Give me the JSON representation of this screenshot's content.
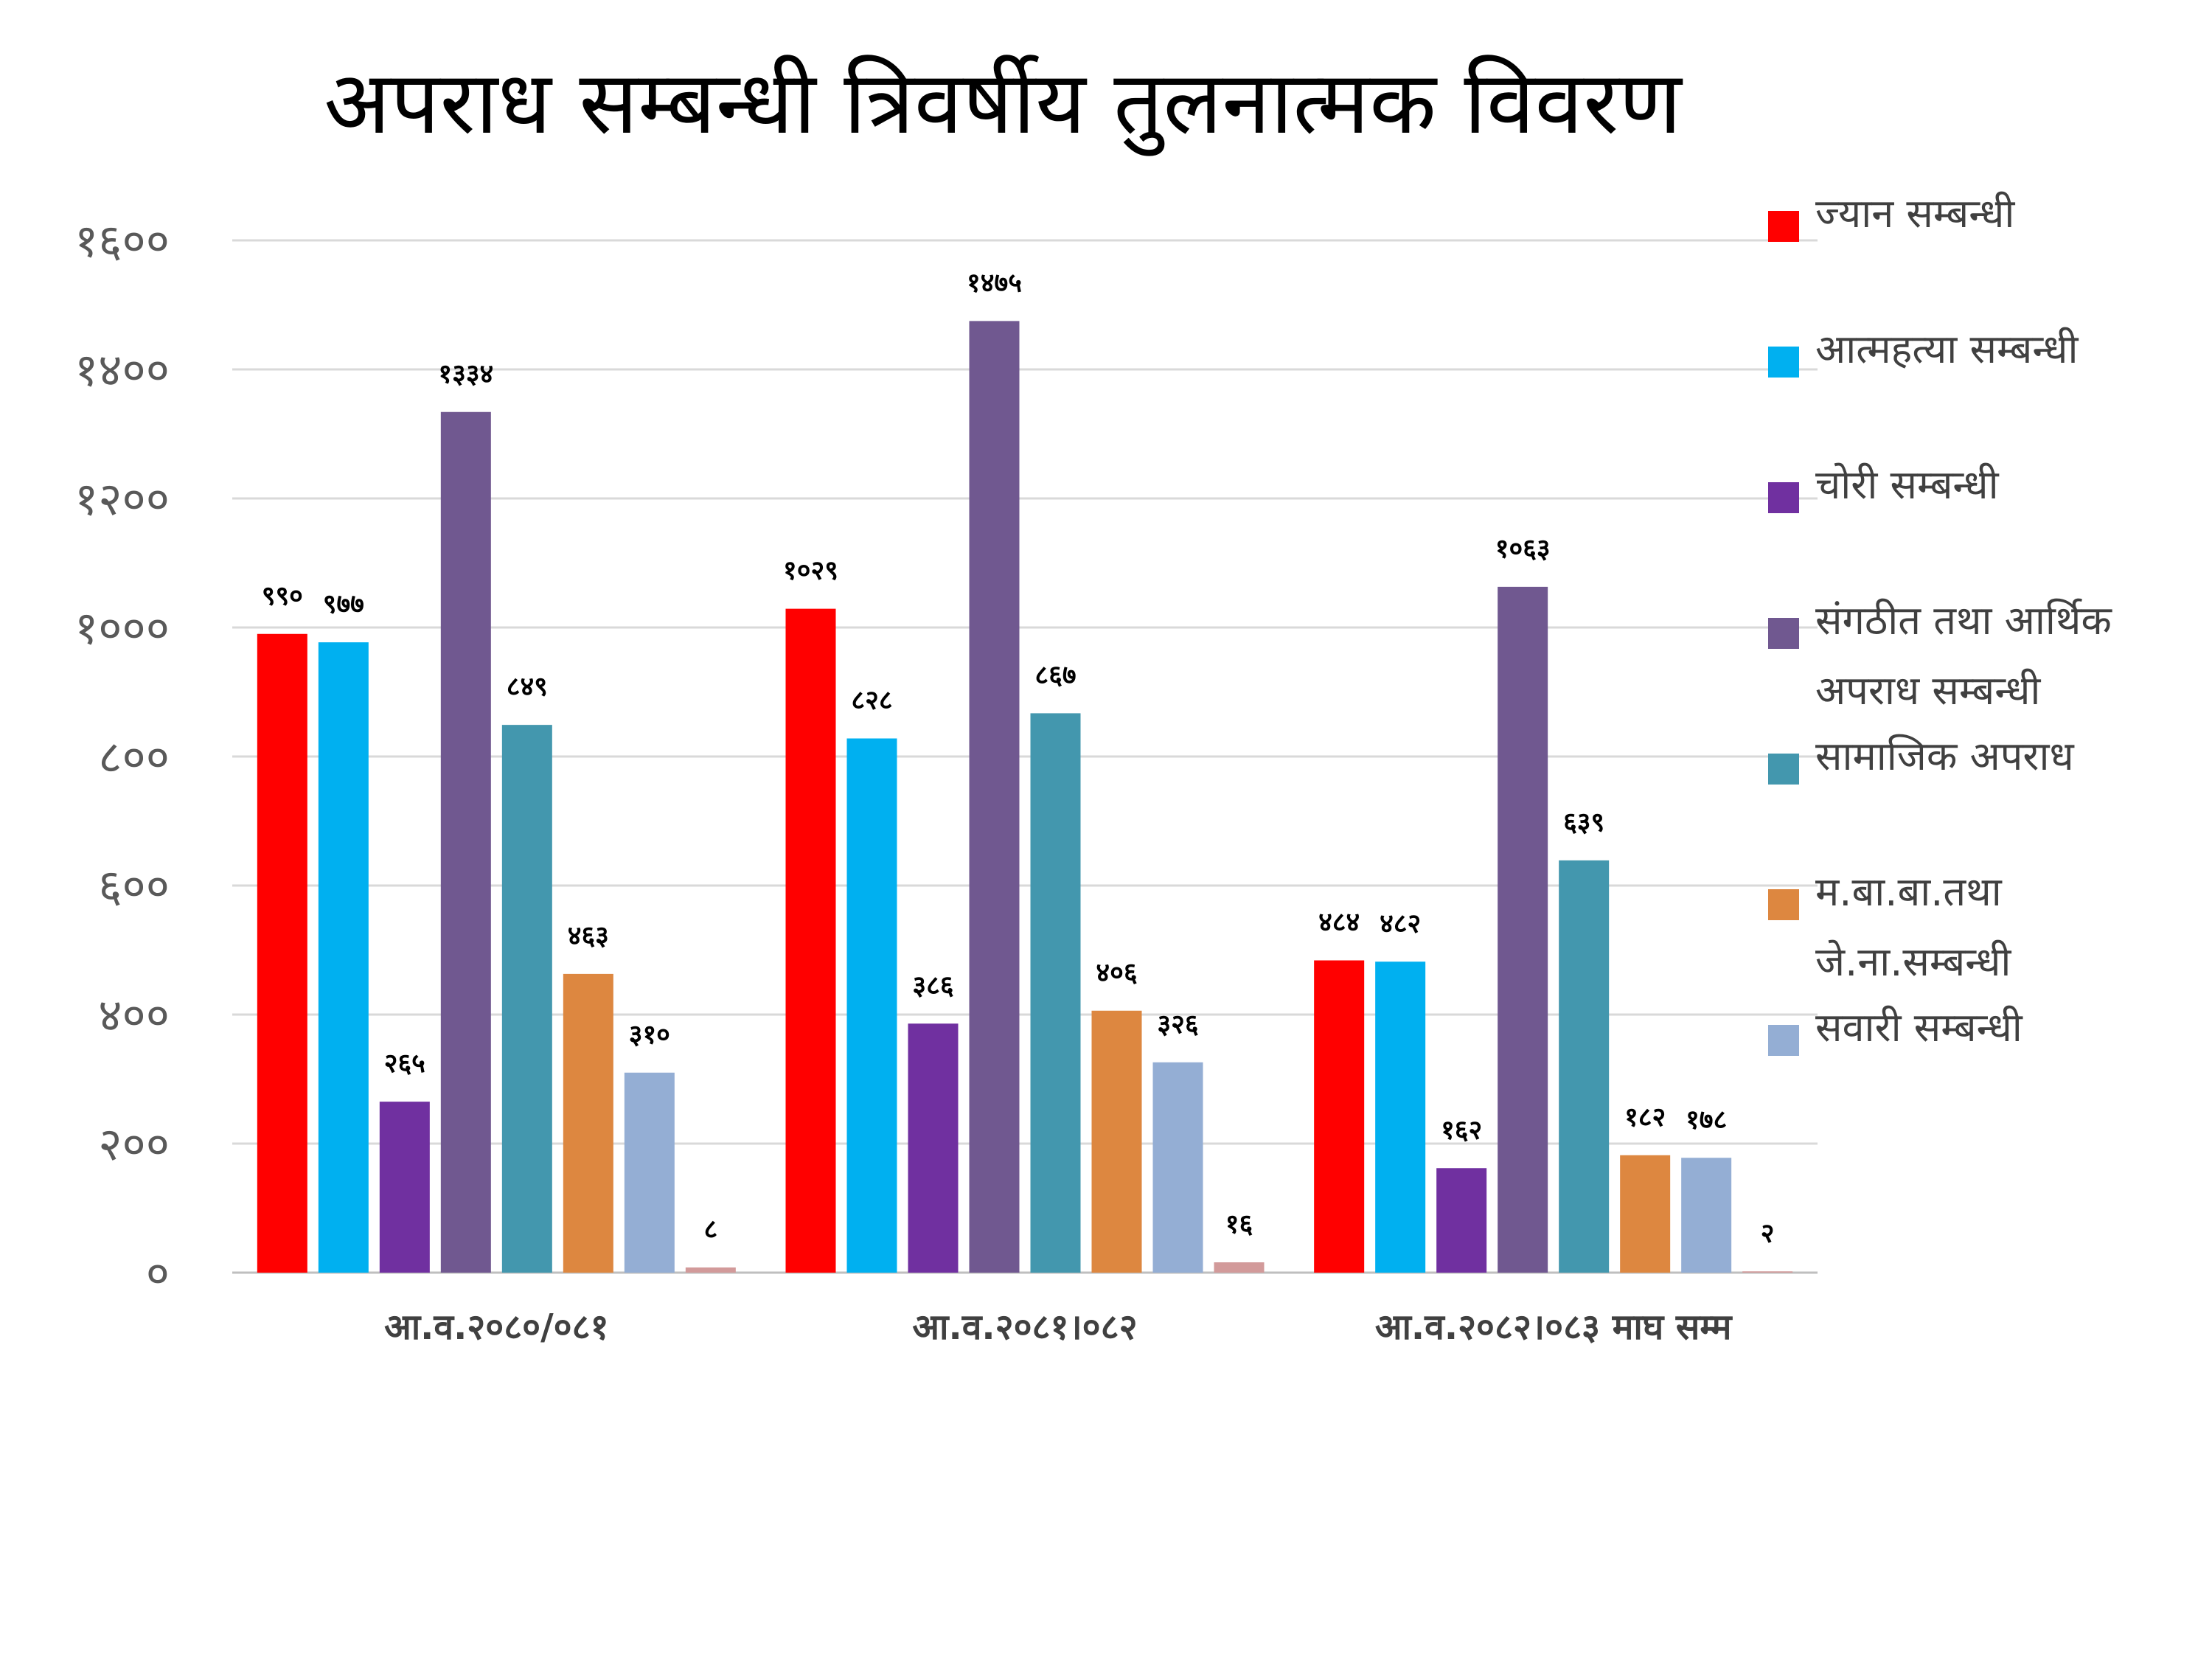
{
  "chart_data": {
    "type": "bar",
    "title": "अपराध सम्बन्धी त्रिवर्षीय तुलनात्मक विवरण",
    "categories": [
      "आ.व.२०८०/०८१",
      "आ.व.२०८१।०८२",
      "आ.व.२०८२।०८३ माघ सम्म"
    ],
    "ylim": [
      0,
      1600
    ],
    "yticks": [
      0,
      200,
      400,
      600,
      800,
      1000,
      1200,
      1400,
      1600
    ],
    "ytick_labels": [
      "०",
      "२००",
      "४००",
      "६००",
      "८००",
      "१०००",
      "१२००",
      "१४००",
      "१६००"
    ],
    "grid": true,
    "legend_position": "right",
    "series": [
      {
        "name": "ज्यान सम्बन्धी",
        "color": "#ff0000",
        "values": [
          990,
          1029,
          484
        ],
        "labels": [
          "९९०",
          "१०२९",
          "४८४"
        ]
      },
      {
        "name": "आत्महत्या सम्बन्धी",
        "color": "#00b0f0",
        "values": [
          977,
          828,
          482
        ],
        "labels": [
          "९७७",
          "८२८",
          "४८२"
        ]
      },
      {
        "name": "चोरी सम्बन्धी",
        "color": "#7030a0",
        "values": [
          265,
          386,
          162
        ],
        "labels": [
          "२६५",
          "३८६",
          "१६२"
        ]
      },
      {
        "name": "संगठीत तथा आर्थिक अपराध सम्बन्धी",
        "name_lines": [
          "संगठीत तथा आर्थिक",
          "अपराध सम्बन्धी"
        ],
        "color": "#705890",
        "values": [
          1334,
          1475,
          1063
        ],
        "labels": [
          "१३३४",
          "१४७५",
          "१०६३"
        ]
      },
      {
        "name": "सामाजिक अपराध",
        "color": "#4397ae",
        "values": [
          849,
          867,
          639
        ],
        "labels": [
          "८४९",
          "८६७",
          "६३९"
        ]
      },
      {
        "name": "म.बा.बा.तथा जे.ना.सम्बन्धी",
        "name_lines": [
          "म.बा.बा.तथा",
          "जे.ना.सम्बन्धी"
        ],
        "color": "#dd8740",
        "values": [
          463,
          406,
          182
        ],
        "labels": [
          "४६३",
          "४०६",
          "१८२"
        ]
      },
      {
        "name": "सवारी सम्बन्धी",
        "color": "#94aed4",
        "values": [
          310,
          326,
          178
        ],
        "labels": [
          "३१०",
          "३२६",
          "१७८"
        ]
      },
      {
        "name": "",
        "color": "#d29a9a",
        "values": [
          8,
          16,
          2
        ],
        "labels": [
          "८",
          "१६",
          "२"
        ]
      }
    ]
  }
}
